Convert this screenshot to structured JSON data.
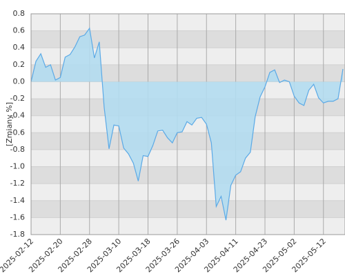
{
  "chart_data": {
    "type": "area",
    "y_label": "[Zmiany %]",
    "categories": [
      "2025-02-12",
      null,
      null,
      null,
      null,
      null,
      "2025-02-20",
      null,
      null,
      null,
      null,
      null,
      "2025-02-28",
      null,
      null,
      null,
      null,
      null,
      "2025-03-10",
      null,
      null,
      null,
      null,
      null,
      "2025-03-18",
      null,
      null,
      null,
      null,
      null,
      "2025-03-26",
      null,
      null,
      null,
      null,
      null,
      "2025-04-03",
      null,
      null,
      null,
      null,
      null,
      "2025-04-11",
      null,
      null,
      null,
      null,
      null,
      "2025-04-23",
      null,
      null,
      null,
      null,
      null,
      "2025-05-02",
      null,
      null,
      null,
      null,
      null,
      "2025-05-12",
      null,
      null,
      null,
      null
    ],
    "values": [
      0.0,
      0.24,
      0.33,
      0.17,
      0.2,
      0.02,
      0.05,
      0.29,
      0.32,
      0.41,
      0.53,
      0.55,
      0.63,
      0.28,
      0.47,
      -0.3,
      -0.79,
      -0.51,
      -0.52,
      -0.78,
      -0.85,
      -0.96,
      -1.17,
      -0.87,
      -0.88,
      -0.75,
      -0.58,
      -0.57,
      -0.66,
      -0.72,
      -0.6,
      -0.59,
      -0.47,
      -0.51,
      -0.43,
      -0.42,
      -0.5,
      -0.72,
      -1.47,
      -1.35,
      -1.63,
      -1.22,
      -1.1,
      -1.06,
      -0.9,
      -0.83,
      -0.41,
      -0.18,
      -0.06,
      0.11,
      0.14,
      -0.01,
      0.02,
      0.0,
      -0.17,
      -0.25,
      -0.28,
      -0.1,
      -0.03,
      -0.19,
      -0.25,
      -0.23,
      -0.23,
      -0.2,
      0.15
    ],
    "color": "#5aa9e6",
    "fill": "#b3dcef",
    "ylim": [
      -1.8,
      0.8
    ],
    "yticks": [
      -1.8,
      -1.6,
      -1.4,
      -1.2,
      {
        "value": -1.0,
        "label": "-1.0"
      },
      -0.8,
      -0.6,
      -0.4,
      -0.2,
      {
        "value": 0,
        "label": "0.0"
      },
      0.2,
      0.4,
      0.6,
      0.8
    ],
    "grid": true
  }
}
